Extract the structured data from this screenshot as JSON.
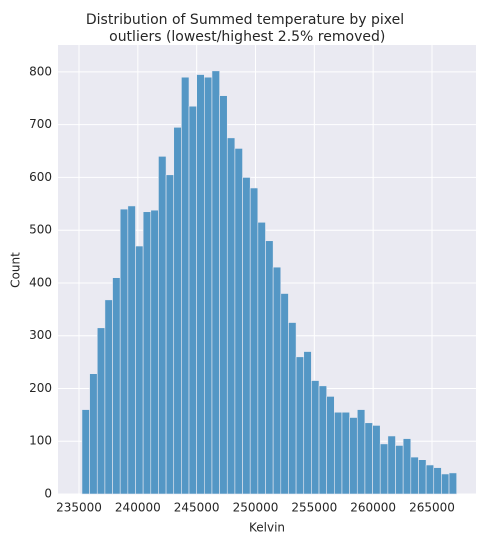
{
  "chart_data": {
    "type": "histogram",
    "title": [
      "Distribution of Summed temperature by pixel",
      " outliers (lowest/highest 2.5% removed)"
    ],
    "xlabel": "Kelvin",
    "ylabel": "Count",
    "bins": [
      235250,
      235900,
      236550,
      237200,
      237850,
      238500,
      239150,
      239800,
      240450,
      241100,
      241750,
      242400,
      243050,
      243700,
      244350,
      245000,
      245650,
      246300,
      246950,
      247600,
      248250,
      248900,
      249550,
      250200,
      250850,
      251500,
      252150,
      252800,
      253450,
      254100,
      254750,
      255400,
      256050,
      256700,
      257350,
      258000,
      258650,
      259300,
      259950,
      260600,
      261250,
      261900,
      262550,
      263200,
      263850,
      264500,
      265150,
      265800,
      266450,
      267100
    ],
    "values": [
      160,
      228,
      315,
      368,
      410,
      540,
      546,
      470,
      535,
      538,
      640,
      605,
      695,
      790,
      735,
      795,
      790,
      802,
      755,
      675,
      655,
      600,
      580,
      515,
      480,
      430,
      380,
      325,
      260,
      270,
      215,
      205,
      185,
      155,
      155,
      145,
      160,
      135,
      130,
      95,
      110,
      92,
      105,
      70,
      65,
      55,
      50,
      38,
      40
    ],
    "color": "#5497c5",
    "xlim": [
      233214,
      268741
    ],
    "xticks": [
      235000,
      240000,
      245000,
      250000,
      255000,
      260000,
      265000
    ],
    "ylim": [
      0,
      851
    ],
    "yticks": [
      0,
      100,
      200,
      300,
      400,
      500,
      600,
      700,
      800
    ],
    "grid": true
  }
}
